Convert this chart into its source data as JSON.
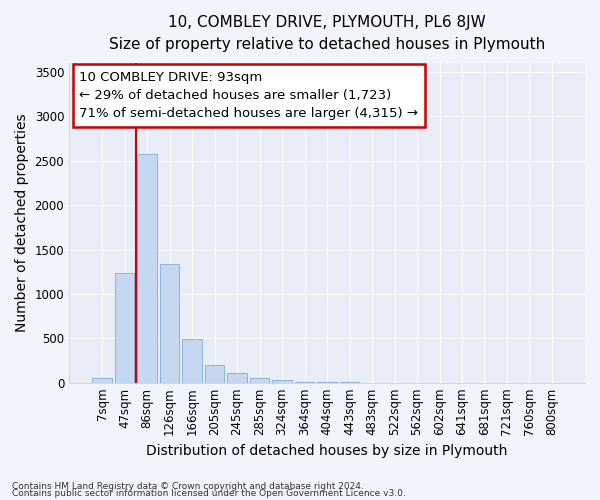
{
  "title": "10, COMBLEY DRIVE, PLYMOUTH, PL6 8JW",
  "subtitle": "Size of property relative to detached houses in Plymouth",
  "xlabel": "Distribution of detached houses by size in Plymouth",
  "ylabel": "Number of detached properties",
  "categories": [
    "7sqm",
    "47sqm",
    "86sqm",
    "126sqm",
    "166sqm",
    "205sqm",
    "245sqm",
    "285sqm",
    "324sqm",
    "364sqm",
    "404sqm",
    "443sqm",
    "483sqm",
    "522sqm",
    "562sqm",
    "602sqm",
    "641sqm",
    "681sqm",
    "721sqm",
    "760sqm",
    "800sqm"
  ],
  "values": [
    50,
    1230,
    2580,
    1340,
    490,
    200,
    110,
    55,
    25,
    10,
    5,
    3,
    2,
    0,
    0,
    0,
    0,
    0,
    0,
    0,
    0
  ],
  "bar_color": "#c5d8f0",
  "bar_edge_color": "#8ab4d8",
  "red_line_x": 1.5,
  "annotation_line1": "10 COMBLEY DRIVE: 93sqm",
  "annotation_line2": "← 29% of detached houses are smaller (1,723)",
  "annotation_line3": "71% of semi-detached houses are larger (4,315) →",
  "ylim": [
    0,
    3600
  ],
  "yticks": [
    0,
    500,
    1000,
    1500,
    2000,
    2500,
    3000,
    3500
  ],
  "footer1": "Contains HM Land Registry data © Crown copyright and database right 2024.",
  "footer2": "Contains public sector information licensed under the Open Government Licence v3.0.",
  "bg_color": "#f2f4fb",
  "plot_bg_color": "#e8edf8",
  "title_fontsize": 11,
  "subtitle_fontsize": 10,
  "axis_label_fontsize": 10,
  "tick_fontsize": 8.5,
  "annot_fontsize": 9.5
}
